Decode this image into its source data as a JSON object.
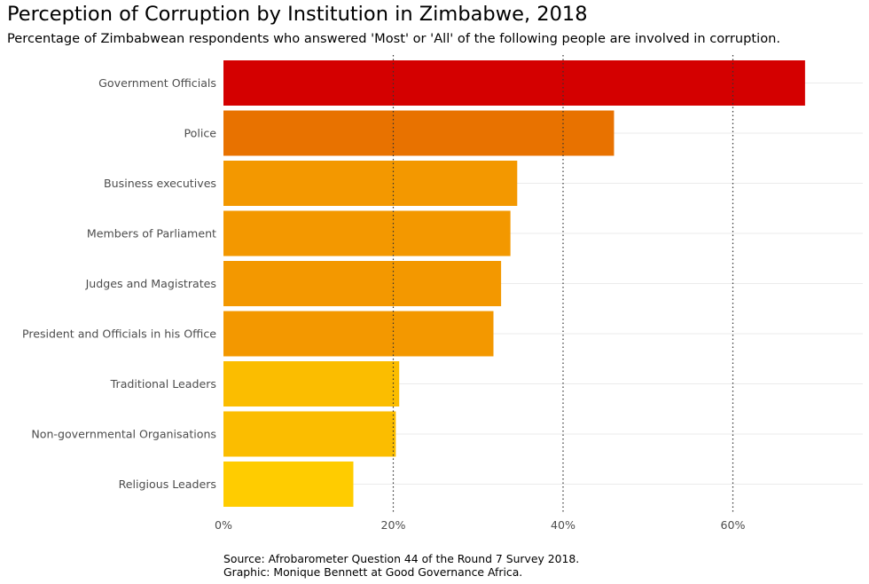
{
  "header": {
    "title": "Perception of Corruption by Institution in Zimbabwe, 2018",
    "subtitle": "Percentage of Zimbabwean respondents who answered 'Most' or 'All' of the following people are involved in corruption."
  },
  "footer": {
    "source": "Source: Afrobarometer Question 44 of the Round 7 Survey 2018.",
    "graphic": "Graphic: Monique Bennett at Good Governance Africa."
  },
  "chart_data": {
    "type": "bar",
    "orientation": "horizontal",
    "title": "Perception of Corruption by Institution in Zimbabwe, 2018",
    "subtitle": "Percentage of Zimbabwean respondents who answered 'Most' or 'All' of the following people are involved in corruption.",
    "xlabel": "",
    "ylabel": "",
    "xlim": [
      0,
      75
    ],
    "xticks": [
      0,
      20,
      40,
      60
    ],
    "xtick_labels": [
      "0%",
      "20%",
      "40%",
      "60%"
    ],
    "grid": "vertical dotted at major ticks",
    "categories": [
      "Government Officials",
      "Police",
      "Business executives",
      "Members of Parliament",
      "Judges and Magistrates",
      "President and Officials in his Office",
      "Traditional Leaders",
      "Non-governmental Organisations",
      "Religious Leaders"
    ],
    "values": [
      68.5,
      46,
      34.6,
      33.8,
      32.7,
      31.8,
      20.7,
      20.3,
      15.3
    ],
    "colors": [
      "#d40000",
      "#e87200",
      "#f39800",
      "#f39800",
      "#f39800",
      "#f39800",
      "#fbbd00",
      "#fbbd00",
      "#ffcc00"
    ]
  }
}
